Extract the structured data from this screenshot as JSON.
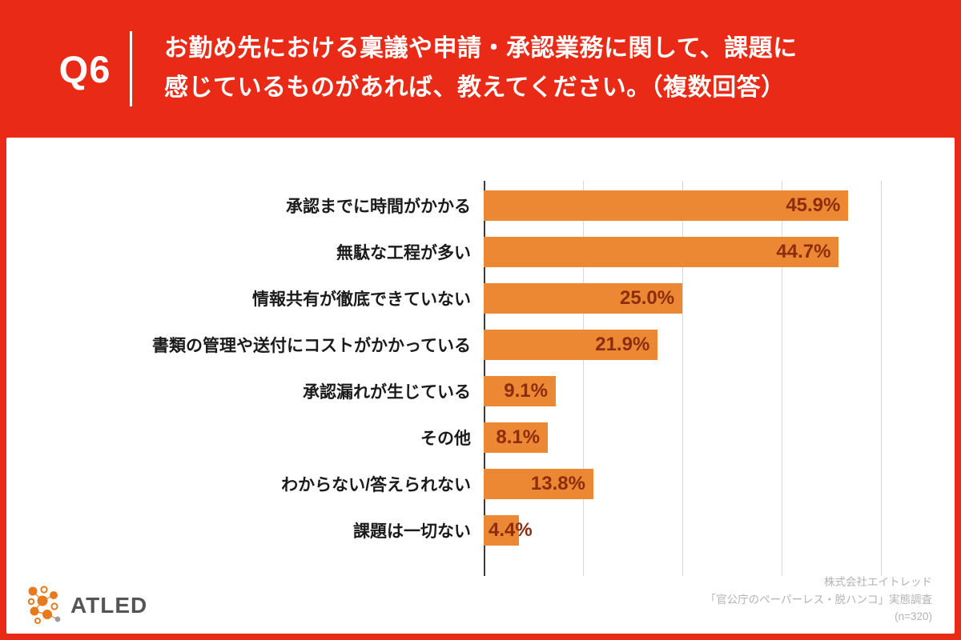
{
  "header": {
    "badge": "Q6",
    "title_line1": "お勤め先における稟議や申請・承認業務に関して、課題に",
    "title_line2": "感じているものがあれば、教えてください。（複数回答）"
  },
  "chart_data": {
    "type": "bar",
    "orientation": "horizontal",
    "categories": [
      "承認までに時間がかかる",
      "無駄な工程が多い",
      "情報共有が徹底できていない",
      "書類の管理や送付にコストがかかっている",
      "承認漏れが生じている",
      "その他",
      "わからない/答えられない",
      "課題は一切ない"
    ],
    "values": [
      45.9,
      44.7,
      25.0,
      21.9,
      9.1,
      8.1,
      13.8,
      4.4
    ],
    "value_labels": [
      "45.9%",
      "44.7%",
      "25.0%",
      "21.9%",
      "9.1%",
      "8.1%",
      "13.8%",
      "4.4%"
    ],
    "xlim": [
      0,
      50
    ],
    "gridlines": [
      12.5,
      25,
      37.5,
      50
    ],
    "grid_on": true,
    "legend": "none",
    "bar_color": "#ec8733",
    "value_label_color": "#8d2d10",
    "axis_color": "#3c3c3c"
  },
  "colors": {
    "brand_red": "#e82a17",
    "panel_bg": "#ffffff"
  },
  "footer": {
    "logo_text": "ATLED",
    "credit_lines": [
      "株式会社エイトレッド",
      "「官公庁のペーパーレス・脱ハンコ」実態調査",
      "(n=320)"
    ]
  }
}
